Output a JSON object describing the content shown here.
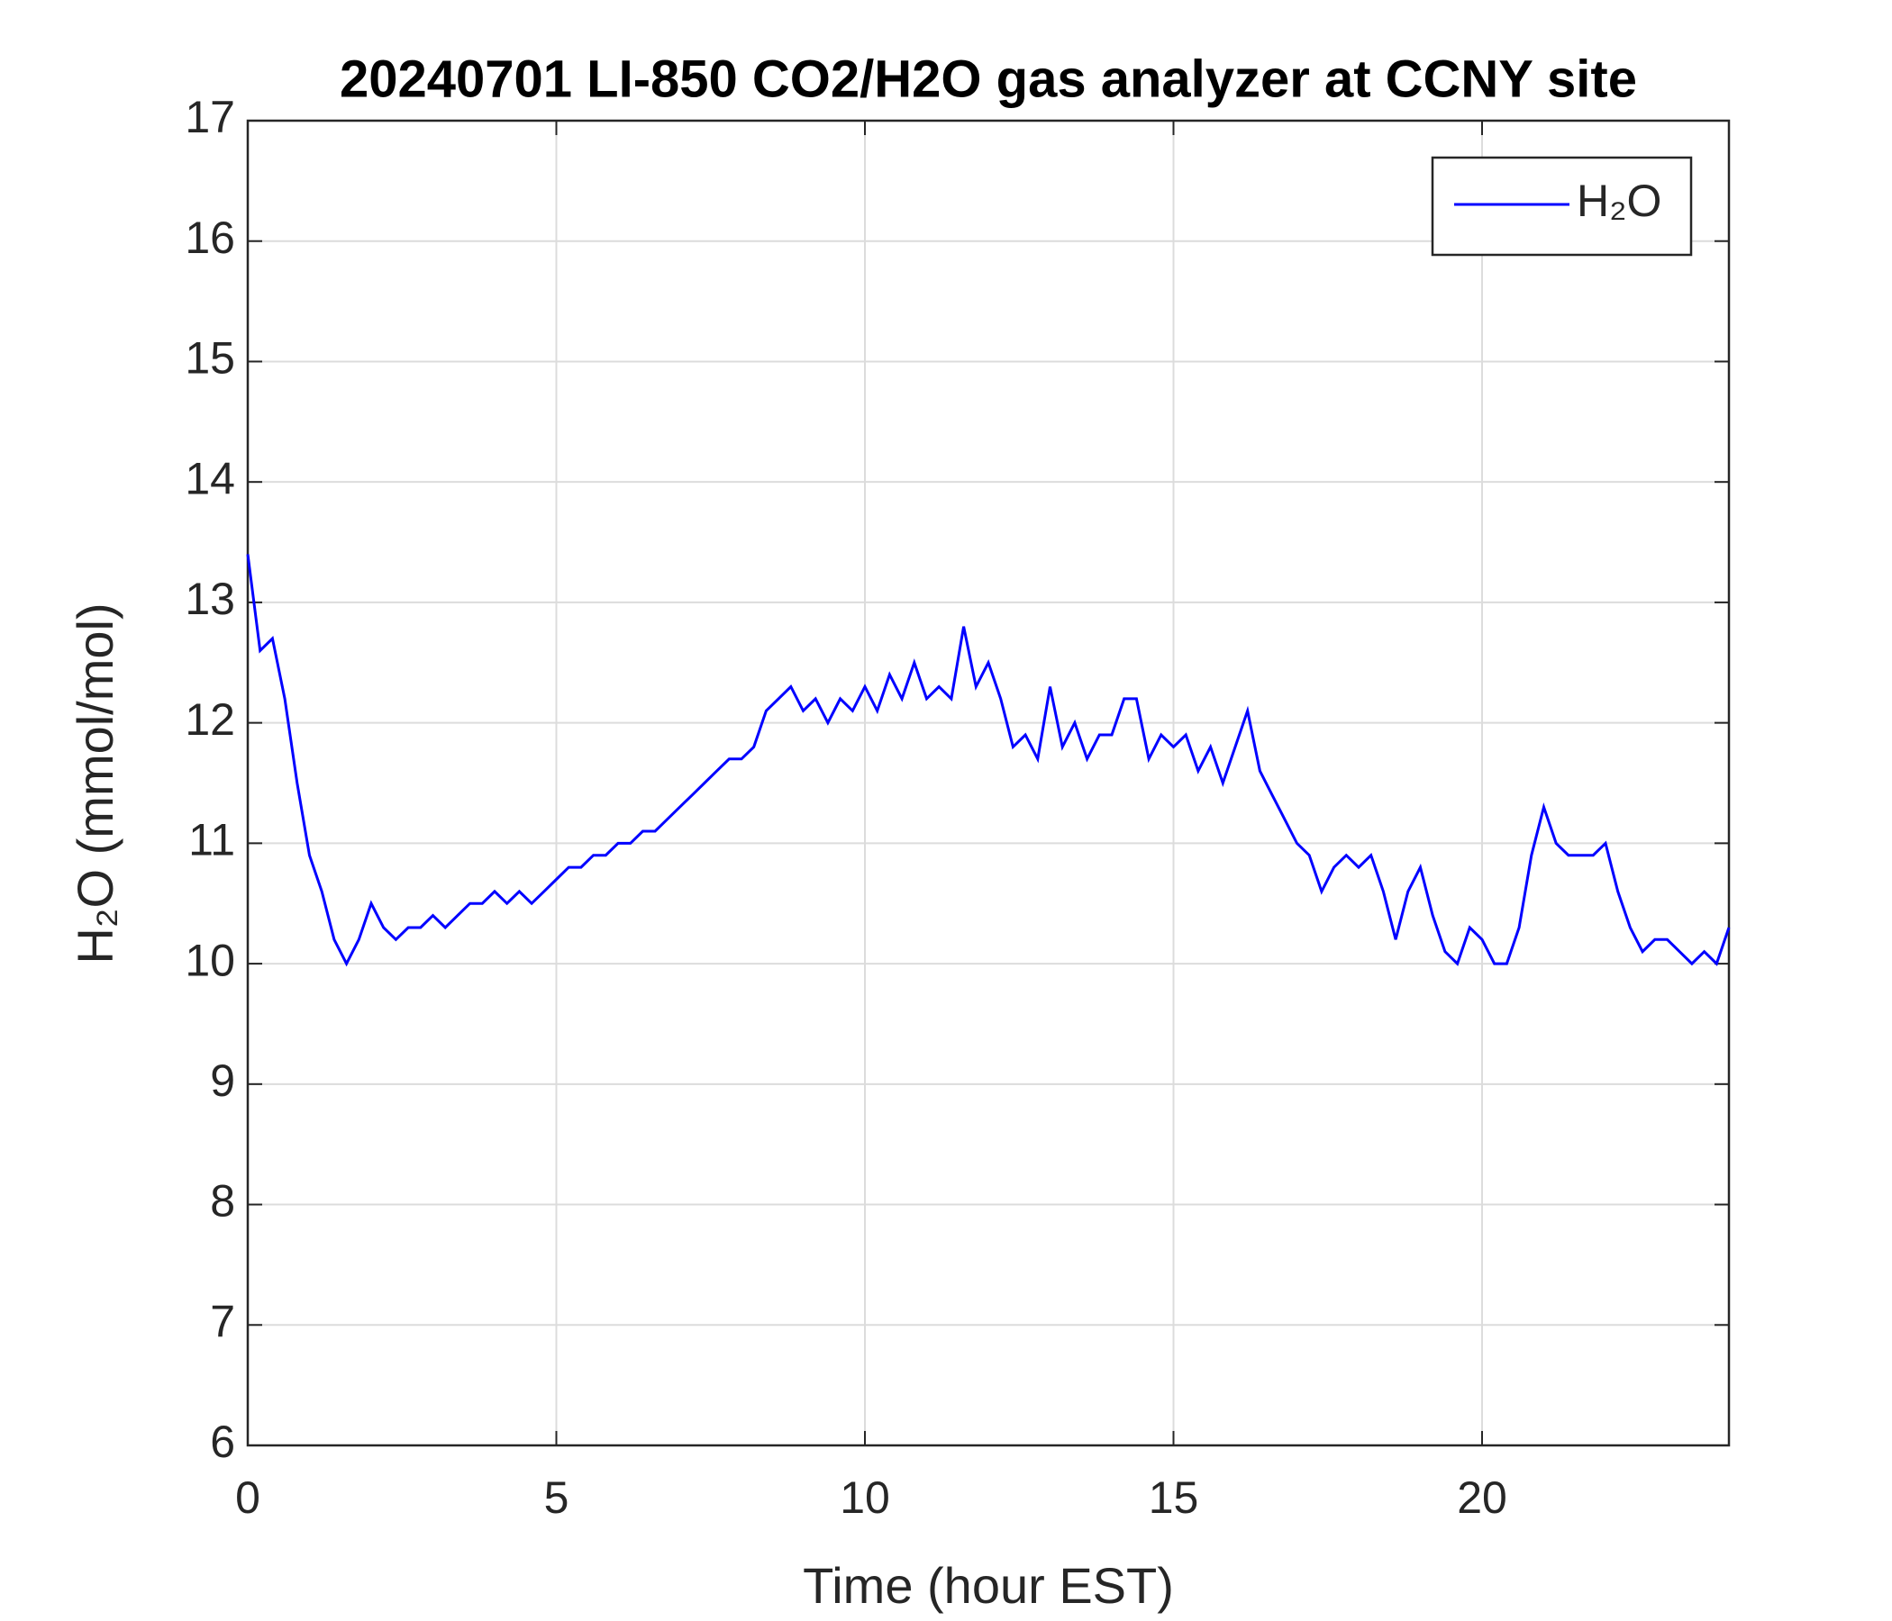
{
  "chart_data": {
    "type": "line",
    "title": "20240701 LI-850 CO2/H2O gas analyzer at CCNY site",
    "x_label": "Time (hour EST)",
    "y_label": "H₂O (mmol/mol)",
    "x": [
      0,
      0.2,
      0.4,
      0.6,
      0.8,
      1,
      1.2,
      1.4,
      1.6,
      1.8,
      2,
      2.2,
      2.4,
      2.6,
      2.8,
      3,
      3.2,
      3.4,
      3.6,
      3.8,
      4,
      4.2,
      4.4,
      4.6,
      4.8,
      5,
      5.2,
      5.4,
      5.6,
      5.8,
      6,
      6.2,
      6.4,
      6.6,
      6.8,
      7,
      7.2,
      7.4,
      7.6,
      7.8,
      8,
      8.2,
      8.4,
      8.6,
      8.8,
      9,
      9.2,
      9.4,
      9.6,
      9.8,
      10,
      10.2,
      10.4,
      10.6,
      10.8,
      11,
      11.2,
      11.4,
      11.6,
      11.8,
      12,
      12.2,
      12.4,
      12.6,
      12.8,
      13,
      13.2,
      13.4,
      13.6,
      13.8,
      14,
      14.2,
      14.4,
      14.6,
      14.8,
      15,
      15.2,
      15.4,
      15.6,
      15.8,
      16,
      16.2,
      16.4,
      16.6,
      16.8,
      17,
      17.2,
      17.4,
      17.6,
      17.8,
      18,
      18.2,
      18.4,
      18.6,
      18.8,
      19,
      19.2,
      19.4,
      19.6,
      19.8,
      20,
      20.2,
      20.4,
      20.6,
      20.8,
      21,
      21.2,
      21.4,
      21.6,
      21.8,
      22,
      22.2,
      22.4,
      22.6,
      22.8,
      23,
      23.2,
      23.4,
      23.6,
      23.8,
      24
    ],
    "series": [
      {
        "name": "H₂O",
        "color": "#0000ff",
        "values": [
          13.4,
          12.6,
          12.7,
          12.2,
          11.5,
          10.9,
          10.6,
          10.2,
          10.0,
          10.2,
          10.5,
          10.3,
          10.2,
          10.3,
          10.3,
          10.4,
          10.3,
          10.4,
          10.5,
          10.5,
          10.6,
          10.5,
          10.6,
          10.5,
          10.6,
          10.7,
          10.8,
          10.8,
          10.9,
          10.9,
          11.0,
          11.0,
          11.1,
          11.1,
          11.2,
          11.3,
          11.4,
          11.5,
          11.6,
          11.7,
          11.7,
          11.8,
          12.1,
          12.2,
          12.3,
          12.1,
          12.2,
          12.0,
          12.2,
          12.1,
          12.3,
          12.1,
          12.4,
          12.2,
          12.5,
          12.2,
          12.3,
          12.2,
          12.8,
          12.3,
          12.5,
          12.2,
          11.8,
          11.9,
          11.7,
          12.3,
          11.8,
          12.0,
          11.7,
          11.9,
          11.9,
          12.2,
          12.2,
          11.7,
          11.9,
          11.8,
          11.9,
          11.6,
          11.8,
          11.5,
          11.8,
          12.1,
          11.6,
          11.4,
          11.2,
          11.0,
          10.9,
          10.6,
          10.8,
          10.9,
          10.8,
          10.9,
          10.6,
          10.2,
          10.6,
          10.8,
          10.4,
          10.1,
          10.0,
          10.3,
          10.2,
          10.0,
          10.0,
          10.3,
          10.9,
          11.3,
          11.0,
          10.9,
          10.9,
          10.9,
          11.0,
          10.6,
          10.3,
          10.1,
          10.2,
          10.2,
          10.1,
          10.0,
          10.1,
          10.0,
          10.3
        ]
      }
    ],
    "xlim": [
      0,
      24
    ],
    "xticks": [
      0,
      5,
      10,
      15,
      20
    ],
    "ylim": [
      6,
      17
    ],
    "yticks": [
      6,
      7,
      8,
      9,
      10,
      11,
      12,
      13,
      14,
      15,
      16,
      17
    ],
    "grid": true,
    "legend": "upper-right"
  }
}
